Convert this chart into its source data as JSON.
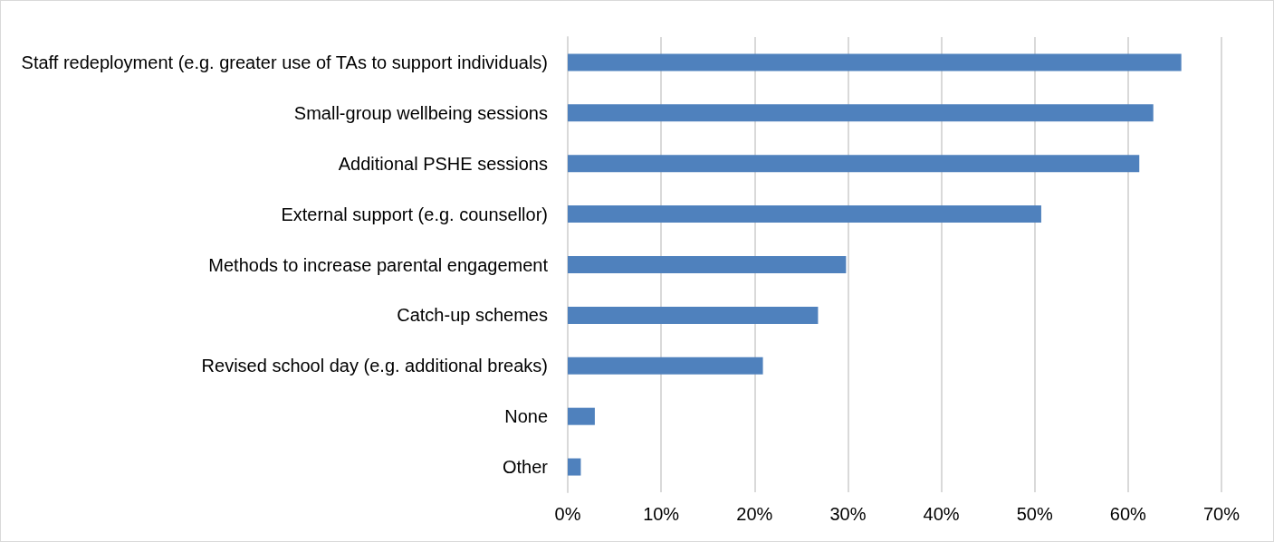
{
  "chart_data": {
    "type": "bar",
    "orientation": "horizontal",
    "categories": [
      "Staff redeployment (e.g. greater use of TAs to support individuals)",
      "Small-group wellbeing sessions",
      "Additional PSHE sessions",
      "External support (e.g. counsellor)",
      "Methods to increase parental engagement",
      "Catch-up schemes",
      "Revised school day (e.g. additional breaks)",
      "None",
      "Other"
    ],
    "values": [
      65.7,
      62.7,
      61.2,
      50.7,
      29.8,
      26.8,
      20.9,
      2.9,
      1.4
    ],
    "color": "#4f81bd",
    "xlim": [
      0,
      70
    ],
    "xticks": [
      {
        "value": 0,
        "label": "0%"
      },
      {
        "value": 10,
        "label": "10%"
      },
      {
        "value": 20,
        "label": "20%"
      },
      {
        "value": 30,
        "label": "30%"
      },
      {
        "value": 40,
        "label": "40%"
      },
      {
        "value": 50,
        "label": "50%"
      },
      {
        "value": 60,
        "label": "60%"
      },
      {
        "value": 70,
        "label": "70%"
      }
    ],
    "grid": "x"
  }
}
